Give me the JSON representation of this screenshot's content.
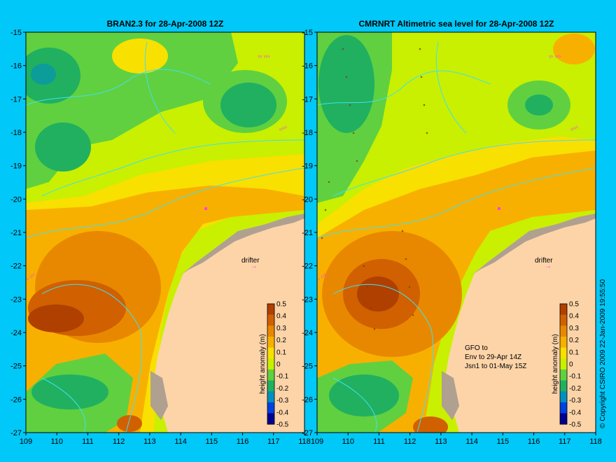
{
  "colors": {
    "background": "#00c8f8",
    "land": "#fcd4a8",
    "coast": "#b0a090",
    "contour": "#40e0f0",
    "drifter": "#ff40e0"
  },
  "left_panel": {
    "title": "BRAN2.3 for 28-Apr-2008 12Z",
    "drifter_label": "drifter"
  },
  "right_panel": {
    "title": "CMRNRT Altimetric sea level  for 28-Apr-2008 12Z",
    "drifter_label": "drifter",
    "notes": [
      "GFO to",
      "Env to 29-Apr 14Z",
      "Jsn1 to 01-May 15Z"
    ]
  },
  "axes": {
    "x_ticks": [
      "109",
      "110",
      "111",
      "112",
      "113",
      "114",
      "115",
      "116",
      "117",
      "118"
    ],
    "y_ticks": [
      "-15",
      "-16",
      "-17",
      "-18",
      "-19",
      "-20",
      "-21",
      "-22",
      "-23",
      "-24",
      "-25",
      "-26",
      "-27"
    ],
    "x_range": [
      109,
      118
    ],
    "y_range": [
      -27,
      -15
    ]
  },
  "colorbar": {
    "label": "height anomaly (m)",
    "ticks": [
      "0.5",
      "0.4",
      "0.3",
      "0.2",
      "0.1",
      "0",
      "-0.1",
      "-0.2",
      "-0.3",
      "-0.4",
      "-0.5"
    ],
    "colors": [
      "#b04000",
      "#d06000",
      "#e88800",
      "#f8b000",
      "#f8e000",
      "#c8f000",
      "#60d040",
      "#20b060",
      "#0090c0",
      "#0040e0",
      "#000090"
    ]
  },
  "footer": "© Copyright CSIRO 2009   22-Jan-2009 19:55:50"
}
